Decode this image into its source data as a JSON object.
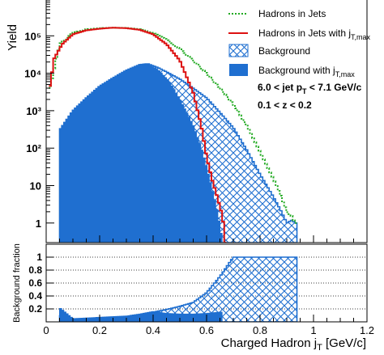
{
  "chart_data": {
    "type": "histogram",
    "xlabel": "Charged Hadron j",
    "xlabel_sub": "T",
    "xlabel_unit": " [GeV/c]",
    "ylabel": "Yield",
    "ratio_ylabel": "Background fraction",
    "yscale": "log",
    "xlim": [
      0,
      1.2
    ],
    "ylim": [
      0.3,
      1000000
    ],
    "ratio_ylim": [
      0,
      1.2
    ],
    "x_ticks": [
      "0",
      "0.2",
      "0.4",
      "0.6",
      "0.8",
      "1",
      "1.2"
    ],
    "y_ticks": [
      "1",
      "10",
      "10²",
      "10³",
      "10⁴",
      "10⁵"
    ],
    "ratio_ticks": [
      "0.2",
      "0.4",
      "0.6",
      "0.8",
      "1"
    ],
    "annotations": [
      {
        "text": "6.0 < jet p",
        "sub": "T",
        "rest": " < 7.1 GeV/c"
      },
      {
        "text": "0.1 < z < 0.2"
      }
    ],
    "legend": [
      {
        "label": "Hadrons in Jets",
        "style": "dotted-line",
        "color": "#22aa22"
      },
      {
        "label": "Hadrons in Jets with j",
        "sub": "T,max",
        "style": "line",
        "color": "#dd1111"
      },
      {
        "label": "Background",
        "style": "hatched",
        "color": "#1f6fd0"
      },
      {
        "label": "Background with j",
        "sub": "T,max",
        "style": "filled",
        "color": "#1f6fd0"
      }
    ],
    "series": [
      {
        "name": "Hadrons in Jets",
        "color": "#22aa22",
        "x": [
          0.01,
          0.05,
          0.1,
          0.15,
          0.2,
          0.25,
          0.3,
          0.35,
          0.4,
          0.45,
          0.5,
          0.55,
          0.6,
          0.65,
          0.7,
          0.75,
          0.8,
          0.85,
          0.88,
          0.9,
          0.92,
          0.93
        ],
        "y": [
          3000,
          60000,
          120000,
          150000,
          160000,
          165000,
          162000,
          150000,
          120000,
          80000,
          45000,
          22000,
          10000,
          4000,
          1500,
          400,
          80,
          15,
          5,
          2,
          1.5,
          1
        ]
      },
      {
        "name": "Hadrons in Jets with jT,max",
        "color": "#dd1111",
        "x": [
          0.01,
          0.03,
          0.06,
          0.1,
          0.15,
          0.2,
          0.25,
          0.3,
          0.35,
          0.4,
          0.45,
          0.5,
          0.55,
          0.58,
          0.6,
          0.62,
          0.64,
          0.66,
          0.67
        ],
        "y": [
          3000,
          25000,
          60000,
          110000,
          140000,
          155000,
          165000,
          160000,
          145000,
          110000,
          60000,
          22000,
          3000,
          400,
          60,
          15,
          5,
          1.5,
          0.3
        ]
      },
      {
        "name": "Background",
        "color": "#1f6fd0",
        "x": [
          0.05,
          0.1,
          0.15,
          0.2,
          0.25,
          0.3,
          0.35,
          0.38,
          0.42,
          0.46,
          0.5,
          0.55,
          0.6,
          0.65,
          0.7,
          0.75,
          0.8,
          0.85,
          0.88,
          0.9,
          0.92,
          0.93
        ],
        "y": [
          300,
          1000,
          2200,
          4500,
          7500,
          12000,
          17000,
          18000,
          14000,
          10000,
          7000,
          4000,
          2200,
          900,
          350,
          90,
          20,
          5,
          2,
          1,
          1.2,
          1
        ]
      },
      {
        "name": "Background with jT,max",
        "color": "#1f6fd0",
        "x": [
          0.05,
          0.1,
          0.15,
          0.2,
          0.25,
          0.3,
          0.35,
          0.38,
          0.42,
          0.46,
          0.5,
          0.55,
          0.58,
          0.6,
          0.62,
          0.64,
          0.66
        ],
        "y": [
          300,
          1000,
          2200,
          4500,
          7500,
          12000,
          17000,
          17500,
          12000,
          6000,
          2000,
          400,
          100,
          30,
          8,
          2,
          0.3
        ]
      }
    ],
    "ratio_series": [
      {
        "name": "Background",
        "x": [
          0.05,
          0.1,
          0.15,
          0.2,
          0.25,
          0.3,
          0.35,
          0.4,
          0.45,
          0.5,
          0.55,
          0.6,
          0.65,
          0.7,
          0.75,
          0.8,
          0.85,
          0.88,
          0.92,
          0.93
        ],
        "y": [
          0.1,
          0.03,
          0.04,
          0.05,
          0.06,
          0.08,
          0.11,
          0.15,
          0.19,
          0.24,
          0.3,
          0.45,
          0.7,
          1.0,
          1.0,
          1.0,
          1.0,
          1.0,
          1.0,
          1.0
        ]
      },
      {
        "name": "Background with jT,max",
        "x": [
          0.05,
          0.1,
          0.15,
          0.2,
          0.25,
          0.3,
          0.35,
          0.4,
          0.45,
          0.5,
          0.55,
          0.6,
          0.65
        ],
        "y": [
          0.22,
          0.05,
          0.06,
          0.07,
          0.08,
          0.09,
          0.12,
          0.16,
          0.13,
          0.12,
          0.12,
          0.13,
          0.15
        ]
      }
    ]
  }
}
